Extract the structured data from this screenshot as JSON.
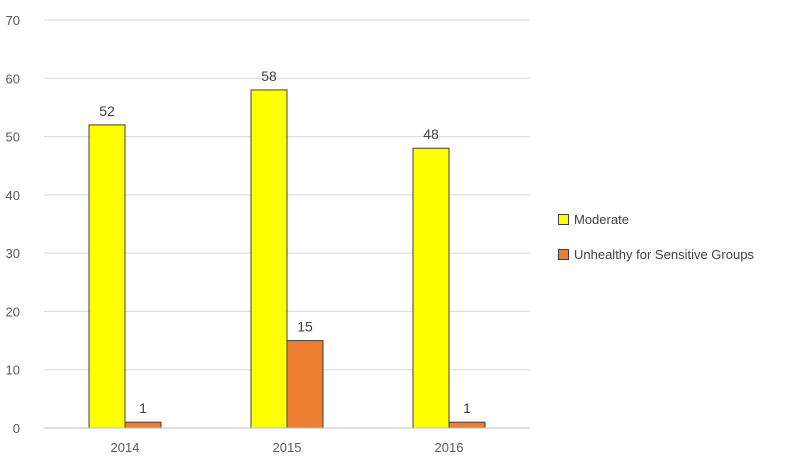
{
  "chart_data": {
    "type": "bar",
    "categories": [
      "2014",
      "2015",
      "2016"
    ],
    "series": [
      {
        "name": "Moderate",
        "values": [
          52,
          58,
          48
        ],
        "color": "#ffff00"
      },
      {
        "name": "Unhealthy for Sensitive Groups",
        "values": [
          1,
          15,
          1
        ],
        "color": "#ed7d31"
      }
    ],
    "ylim": [
      0,
      70
    ],
    "yticks": [
      0,
      10,
      20,
      30,
      40,
      50,
      60,
      70
    ],
    "grid": true,
    "legend": "right",
    "title": "",
    "xlabel": "",
    "ylabel": ""
  }
}
